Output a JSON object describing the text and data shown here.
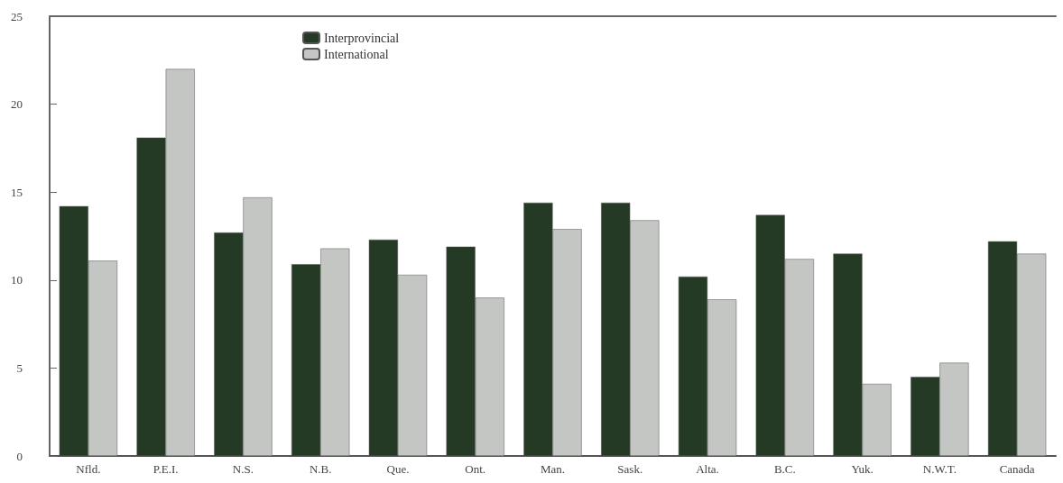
{
  "chart_data": {
    "type": "bar",
    "categories": [
      "Nfld.",
      "P.E.I.",
      "N.S.",
      "N.B.",
      "Que.",
      "Ont.",
      "Man.",
      "Sask.",
      "Alta.",
      "B.C.",
      "Yuk.",
      "N.W.T.",
      "Canada"
    ],
    "series": [
      {
        "name": "Interprovincial",
        "color": "#243a24",
        "values": [
          14.2,
          18.1,
          12.7,
          10.9,
          12.3,
          11.9,
          14.4,
          14.4,
          10.2,
          13.7,
          11.5,
          4.5,
          12.2
        ]
      },
      {
        "name": "International",
        "color": "#c4c6c4",
        "values": [
          11.1,
          22.0,
          14.7,
          11.8,
          10.3,
          9.0,
          12.9,
          13.4,
          8.9,
          11.2,
          4.1,
          5.3,
          11.5
        ]
      }
    ],
    "ylim": [
      0,
      25
    ],
    "yticks": [
      0,
      5,
      10,
      15,
      20,
      25
    ],
    "grid": false,
    "legend": "top left"
  }
}
